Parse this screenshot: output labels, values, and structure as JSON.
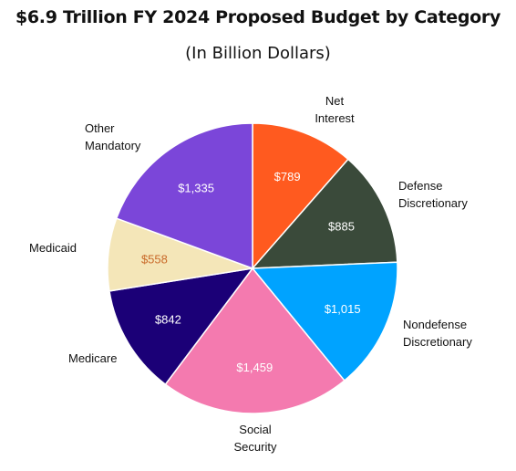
{
  "title": "$6.9 Trillion FY 2024 Proposed Budget by Category",
  "subtitle": "(In Billion Dollars)",
  "chart_data": {
    "type": "pie",
    "title": "$6.9 Trillion FY 2024 Proposed Budget by Category",
    "subtitle": "(In Billion Dollars)",
    "start_angle_deg": 0,
    "direction": "clockwise",
    "slices": [
      {
        "label": [
          "Net",
          "Interest"
        ],
        "value": 789,
        "value_label": "$789",
        "color": "#FF5A1F",
        "value_color": "#FFFFFF"
      },
      {
        "label": [
          "Defense",
          "Discretionary"
        ],
        "value": 885,
        "value_label": "$885",
        "color": "#3A4A3A",
        "value_color": "#FFFFFF"
      },
      {
        "label": [
          "Nondefense",
          "Discretionary"
        ],
        "value": 1015,
        "value_label": "$1,015",
        "color": "#00A3FF",
        "value_color": "#FFFFFF"
      },
      {
        "label": [
          "Social",
          "Security"
        ],
        "value": 1459,
        "value_label": "$1,459",
        "color": "#F47AAF",
        "value_color": "#FFFFFF"
      },
      {
        "label": [
          "Medicare"
        ],
        "value": 842,
        "value_label": "$842",
        "color": "#1B0077",
        "value_color": "#FFFFFF"
      },
      {
        "label": [
          "Medicaid"
        ],
        "value": 558,
        "value_label": "$558",
        "color": "#F4E6B8",
        "value_color": "#C96A2A"
      },
      {
        "label": [
          "Other",
          "Mandatory"
        ],
        "value": 1335,
        "value_label": "$1,335",
        "color": "#7B46D9",
        "value_color": "#FFFFFF"
      }
    ]
  }
}
